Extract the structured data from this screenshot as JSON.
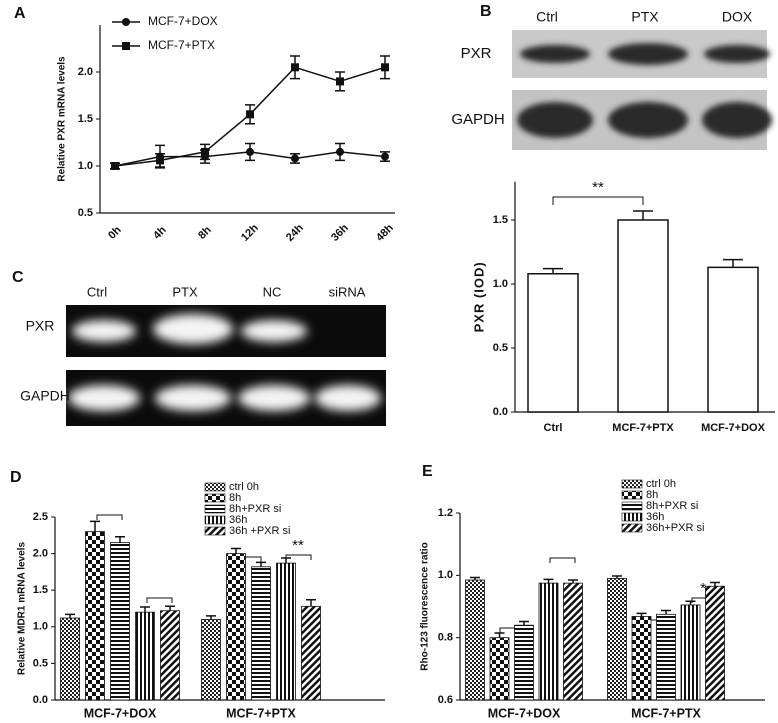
{
  "chart_data": [
    {
      "type": "line",
      "label": "A",
      "y_label": "Relative PXR mRNA levels",
      "categories": [
        "0h",
        "4h",
        "8h",
        "12h",
        "24h",
        "36h",
        "48h"
      ],
      "series": [
        {
          "name": "MCF-7+DOX",
          "color": "#111111",
          "marker": "circle",
          "values": [
            1.0,
            1.1,
            1.1,
            1.15,
            1.08,
            1.15,
            1.1
          ],
          "errors": [
            0.03,
            0.12,
            0.07,
            0.09,
            0.05,
            0.09,
            0.05
          ]
        },
        {
          "name": "MCF-7+PTX",
          "color": "#111111",
          "marker": "square",
          "values": [
            1.0,
            1.06,
            1.15,
            1.55,
            2.05,
            1.9,
            2.05
          ],
          "errors": [
            0.03,
            0.07,
            0.08,
            0.1,
            0.12,
            0.1,
            0.12
          ]
        }
      ],
      "ylim": [
        0.5,
        2.5
      ],
      "yticks": [
        0.5,
        {
          "value": 1,
          "label": "1.0"
        },
        1.5,
        {
          "value": 2,
          "label": "2.0"
        }
      ]
    },
    {
      "type": "bar",
      "y_label": "PXR (IOD)",
      "categories": [
        "Ctrl",
        "MCF-7+PTX",
        "MCF-7+DOX"
      ],
      "values": [
        1.08,
        1.5,
        1.13
      ],
      "errors": [
        0.04,
        0.07,
        0.06
      ],
      "color": "#ffffff",
      "ylim": [
        0,
        1.8
      ],
      "yticks": [
        {
          "value": 0,
          "label": "0.0"
        },
        0.5,
        {
          "value": 1,
          "label": "1.0"
        },
        1.5
      ],
      "annotations": [
        "**"
      ]
    },
    {
      "type": "grouped_bar",
      "label": "D",
      "y_label": "Relative MDR1 mRNA levels",
      "categories": [
        "MCF-7+DOX",
        "MCF-7+PTX"
      ],
      "series": [
        {
          "name": "ctrl 0h",
          "pattern": "checker",
          "values": [
            1.12,
            1.1
          ],
          "errors": [
            0.05,
            0.05
          ]
        },
        {
          "name": "8h",
          "pattern": "checker-large",
          "values": [
            2.3,
            2.0
          ],
          "errors": [
            0.14,
            0.07
          ]
        },
        {
          "name": "8h+PXR si",
          "pattern": "horizontal",
          "values": [
            2.15,
            1.82
          ],
          "errors": [
            0.08,
            0.06
          ]
        },
        {
          "name": "36h",
          "pattern": "vertical",
          "values": [
            1.2,
            1.87
          ],
          "errors": [
            0.07,
            0.07
          ]
        },
        {
          "name": "36h +PXR si",
          "pattern": "diagonal",
          "values": [
            1.22,
            1.28
          ],
          "errors": [
            0.06,
            0.09
          ]
        }
      ],
      "ylim": [
        0,
        2.5
      ],
      "yticks": [
        {
          "value": 0,
          "label": "0.0"
        },
        0.5,
        {
          "value": 1,
          "label": "1.0"
        },
        1.5,
        {
          "value": 2,
          "label": "2.0"
        },
        2.5
      ],
      "annotations": [
        "**"
      ]
    },
    {
      "type": "grouped_bar",
      "label": "E",
      "y_label": "Rho-123 fluorescence ratio",
      "categories": [
        "MCF-7+DOX",
        "MCF-7+PTX"
      ],
      "series": [
        {
          "name": "ctrl 0h",
          "pattern": "checker",
          "values": [
            0.985,
            0.99
          ],
          "errors": [
            0.008,
            0.008
          ]
        },
        {
          "name": "8h",
          "pattern": "checker-large",
          "values": [
            0.8,
            0.868
          ],
          "errors": [
            0.015,
            0.01
          ]
        },
        {
          "name": "8h+PXR si",
          "pattern": "horizontal",
          "values": [
            0.84,
            0.875
          ],
          "errors": [
            0.012,
            0.012
          ]
        },
        {
          "name": "36h",
          "pattern": "vertical",
          "values": [
            0.975,
            0.905
          ],
          "errors": [
            0.012,
            0.012
          ]
        },
        {
          "name": "36h+PXR si",
          "pattern": "diagonal",
          "values": [
            0.975,
            0.965
          ],
          "errors": [
            0.01,
            0.012
          ]
        }
      ],
      "ylim": [
        0.6,
        1.2
      ],
      "yticks": [
        0.6,
        0.8,
        {
          "value": 1,
          "label": "1.0"
        },
        1.2
      ],
      "annotations": [
        "*"
      ]
    }
  ],
  "blots": [
    {
      "label": "B",
      "lanes": [
        "Ctrl",
        "PTX",
        "DOX"
      ],
      "rows": [
        "PXR",
        "GAPDH"
      ]
    },
    {
      "label": "C",
      "lanes": [
        "Ctrl",
        "PTX",
        "NC",
        "siRNA"
      ],
      "rows": [
        "PXR",
        "GAPDH"
      ]
    }
  ]
}
